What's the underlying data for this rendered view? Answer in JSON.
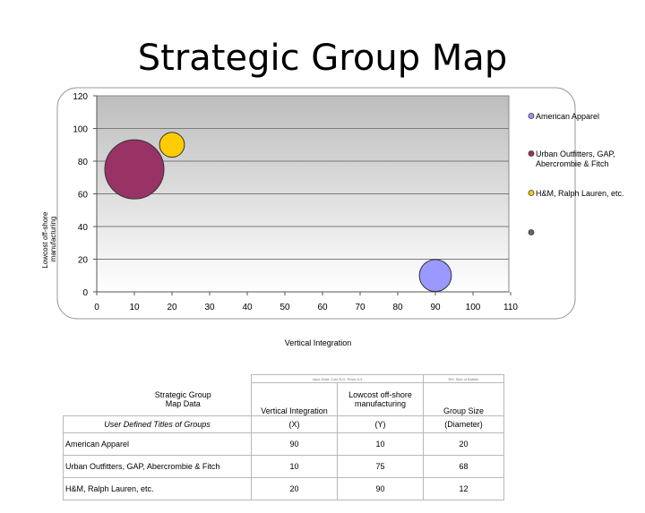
{
  "page_title": "Strategic Group Map",
  "chart_data": {
    "type": "bubble",
    "xlabel": "Vertical Integration",
    "ylabel": "Lowcost off-shore manufacturing",
    "xlim": [
      0,
      110
    ],
    "ylim": [
      0,
      120
    ],
    "xticks": [
      0,
      10,
      20,
      30,
      40,
      50,
      60,
      70,
      80,
      90,
      100,
      110
    ],
    "yticks": [
      0,
      20,
      40,
      60,
      80,
      100,
      120
    ],
    "legend_position": "right",
    "series": [
      {
        "name": "American Apparel",
        "x": 90,
        "y": 10,
        "size": 20,
        "color": "#9999ff"
      },
      {
        "name": "Urban Outfitters, GAP, Abercrombie & Fitch",
        "x": 10,
        "y": 75,
        "size": 68,
        "color": "#993366"
      },
      {
        "name": "H&M, Ralph Lauren, etc.",
        "x": 20,
        "y": 90,
        "size": 12,
        "color": "#ffcc00"
      },
      {
        "name": "",
        "x": null,
        "y": null,
        "size": null,
        "color": "#666666"
      }
    ]
  },
  "table": {
    "tiny_notes": [
      "Input Data: Cols B-D, Rows 5-9",
      "Rel. Size of Bubble"
    ],
    "corner_label": "Strategic Group Map Data",
    "headers": [
      "Vertical Integration",
      "Lowcost off-shore manufacturing",
      "Group Size"
    ],
    "subheader_label": "User Defined Titles of Groups",
    "subheaders": [
      "(X)",
      "(Y)",
      "(Diameter)"
    ],
    "rows": [
      {
        "name": "American Apparel",
        "x": "90",
        "y": "10",
        "d": "20"
      },
      {
        "name": "Urban Outfitters, GAP, Abercrombie & Fitch",
        "x": "10",
        "y": "75",
        "d": "68"
      },
      {
        "name": "H&M, Ralph Lauren, etc.",
        "x": "20",
        "y": "90",
        "d": "12"
      }
    ]
  }
}
